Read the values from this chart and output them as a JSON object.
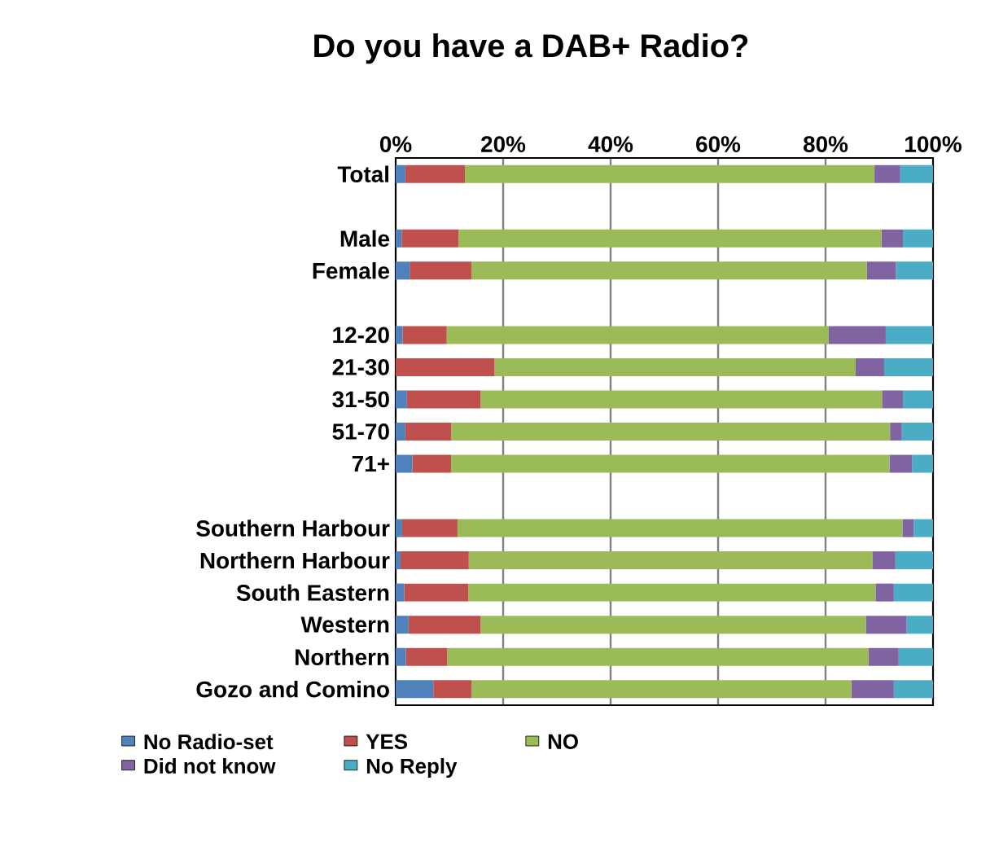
{
  "chart_data": {
    "type": "bar",
    "orientation": "horizontal",
    "stacked": true,
    "title": "Do you have a DAB+ Radio?",
    "categories": [
      "Total",
      null,
      "Male",
      "Female",
      null,
      "12-20",
      "21-30",
      "31-50",
      "51-70",
      "71+",
      null,
      "Southern Harbour",
      "Northern Harbour",
      "South Eastern",
      "Western",
      "Northern",
      "Gozo and Comino"
    ],
    "series": [
      {
        "name": "No Radio-set",
        "color": "#4f81bd",
        "values": [
          1.8,
          null,
          1.1,
          2.6,
          null,
          1.3,
          0,
          2.1,
          1.8,
          3.1,
          null,
          1.2,
          0.9,
          1.6,
          2.4,
          1.9,
          7.0
        ]
      },
      {
        "name": "YES",
        "color": "#c0504d",
        "values": [
          11.1,
          null,
          10.6,
          11.5,
          null,
          8.2,
          18.4,
          13.7,
          8.5,
          7.2,
          null,
          10.3,
          12.7,
          11.9,
          13.4,
          7.7,
          7.1
        ]
      },
      {
        "name": "NO",
        "color": "#9bbb59",
        "values": [
          76.2,
          null,
          78.7,
          73.6,
          null,
          71.1,
          67.2,
          74.7,
          81.7,
          81.6,
          null,
          82.8,
          75.1,
          75.8,
          71.7,
          78.4,
          70.7
        ]
      },
      {
        "name": "Did not know",
        "color": "#8064a2",
        "values": [
          4.8,
          null,
          4.0,
          5.4,
          null,
          10.6,
          5.3,
          3.9,
          2.2,
          4.2,
          null,
          2.1,
          4.3,
          3.4,
          7.6,
          5.6,
          7.9
        ]
      },
      {
        "name": "No Reply",
        "color": "#4bacc6",
        "values": [
          6.1,
          null,
          5.6,
          6.9,
          null,
          8.8,
          9.1,
          5.6,
          5.8,
          3.9,
          null,
          3.6,
          7.0,
          7.3,
          4.9,
          6.4,
          7.3
        ]
      }
    ],
    "xlim": [
      0,
      100
    ],
    "xticks": [
      {
        "value": 0,
        "label": "0%"
      },
      {
        "value": 20,
        "label": "20%"
      },
      {
        "value": 40,
        "label": "40%"
      },
      {
        "value": 60,
        "label": "60%"
      },
      {
        "value": 80,
        "label": "80%"
      },
      {
        "value": 100,
        "label": "100%"
      }
    ],
    "grid": "x",
    "legend": "bottom"
  }
}
